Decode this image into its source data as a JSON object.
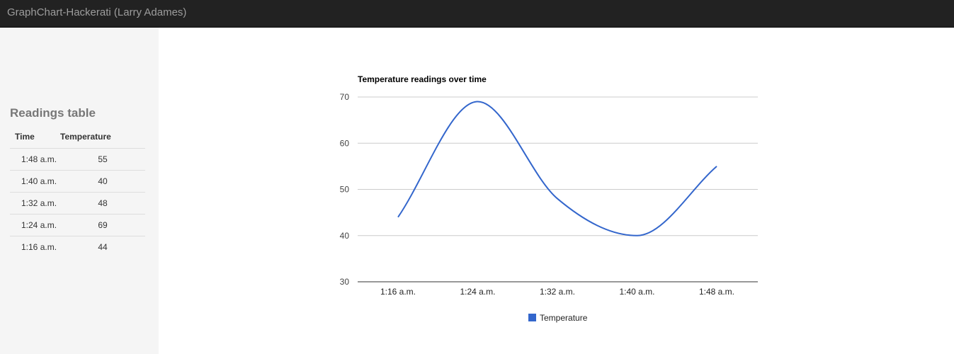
{
  "navbar": {
    "brand": "GraphChart-Hackerati (Larry Adames)"
  },
  "sidebar": {
    "title": "Readings table",
    "table": {
      "headers": [
        "Time",
        "Temperature"
      ],
      "rows": [
        {
          "time": "1:48 a.m.",
          "temperature": "55"
        },
        {
          "time": "1:40 a.m.",
          "temperature": "40"
        },
        {
          "time": "1:32 a.m.",
          "temperature": "48"
        },
        {
          "time": "1:24 a.m.",
          "temperature": "69"
        },
        {
          "time": "1:16 a.m.",
          "temperature": "44"
        }
      ]
    }
  },
  "chart_data": {
    "type": "line",
    "title": "Temperature readings over time",
    "x": [
      "1:16 a.m.",
      "1:24 a.m.",
      "1:32 a.m.",
      "1:40 a.m.",
      "1:48 a.m."
    ],
    "series": [
      {
        "name": "Temperature",
        "values": [
          44,
          69,
          48,
          40,
          55
        ],
        "color": "#3366cc"
      }
    ],
    "ylim": [
      30,
      70
    ],
    "yticks": [
      30,
      40,
      50,
      60,
      70
    ],
    "grid": true,
    "legend": "bottom",
    "curve": "smooth"
  }
}
